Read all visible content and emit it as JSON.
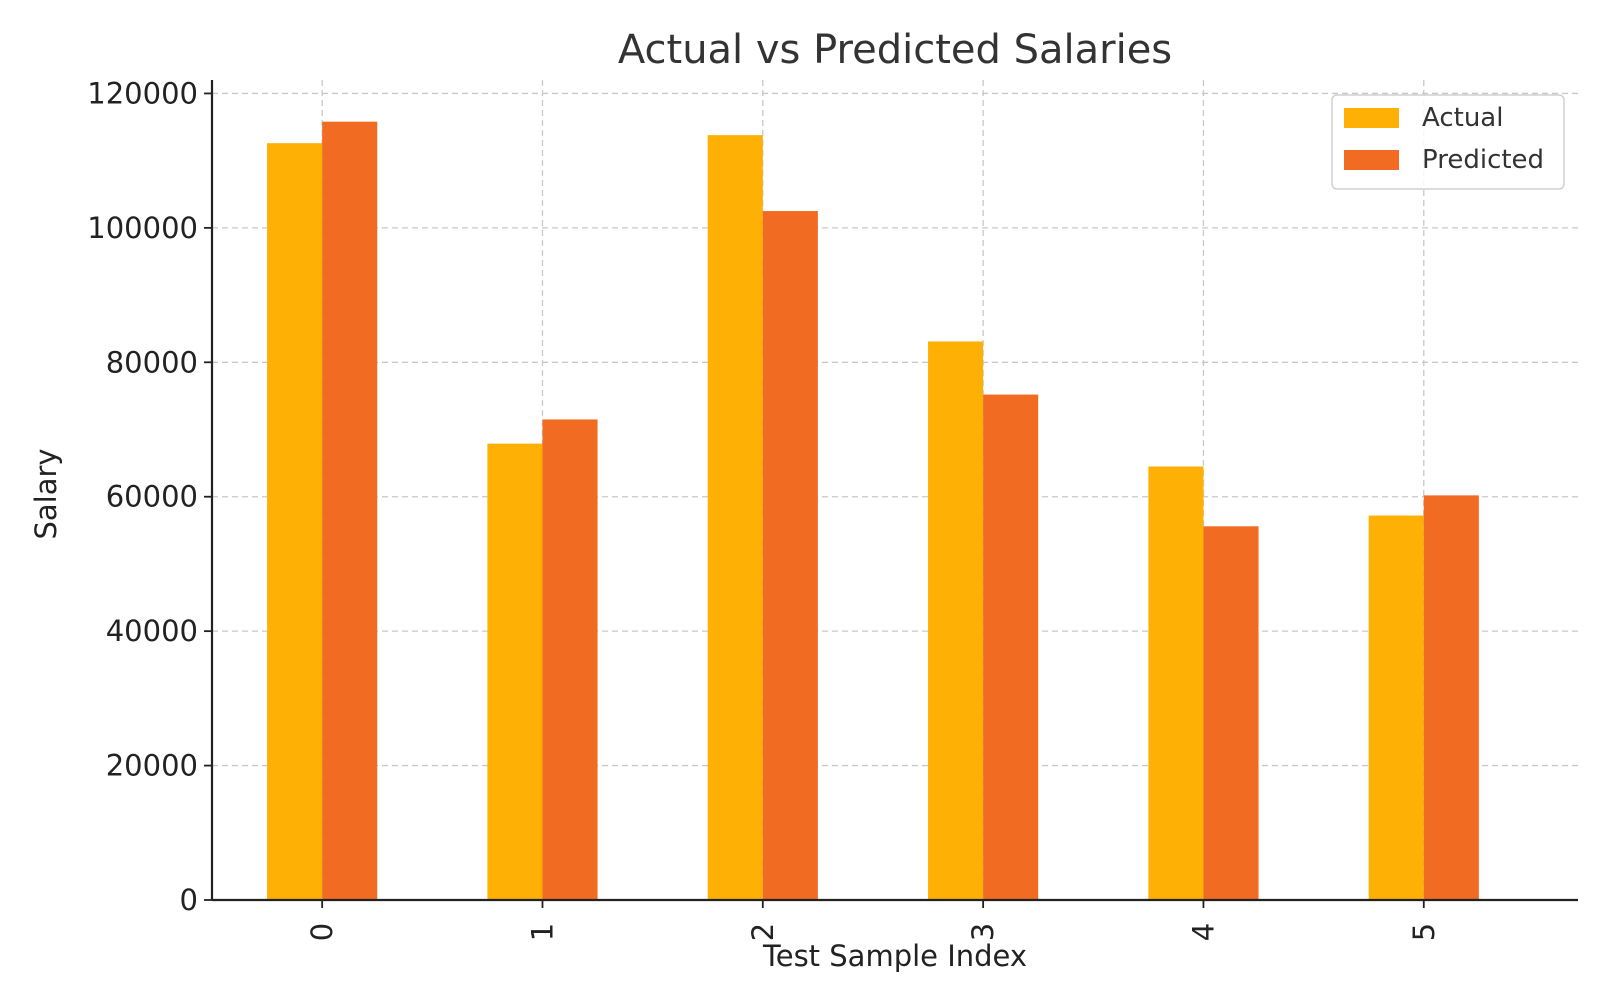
{
  "chart_data": {
    "type": "bar",
    "title": "Actual vs Predicted Salaries",
    "xlabel": "Test Sample Index",
    "ylabel": "Salary",
    "categories": [
      "0",
      "1",
      "2",
      "3",
      "4",
      "5"
    ],
    "series": [
      {
        "name": "Actual",
        "color": "#FFB005",
        "values": [
          112600,
          67900,
          113800,
          83100,
          64500,
          57200
        ]
      },
      {
        "name": "Predicted",
        "color": "#F26B22",
        "values": [
          115800,
          71500,
          102500,
          75200,
          55600,
          60200
        ]
      }
    ],
    "ylim": [
      0,
      122000
    ],
    "yticks": [
      0,
      20000,
      40000,
      60000,
      80000,
      100000,
      120000
    ],
    "yticks_labels": [
      "0",
      "20000",
      "40000",
      "60000",
      "80000",
      "100000",
      "120000"
    ],
    "grid": true,
    "legend_position": "top-right",
    "xtick_rotation": "vertical"
  }
}
